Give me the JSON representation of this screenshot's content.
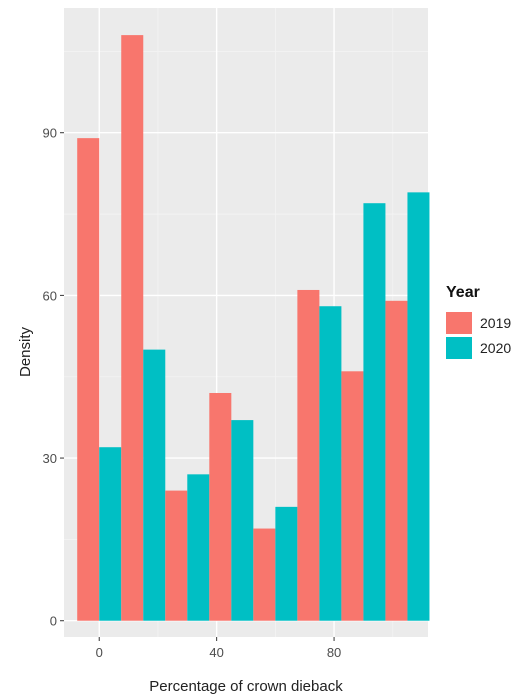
{
  "chart_data": {
    "type": "bar",
    "xlabel": "Percentage of crown dieback",
    "ylabel": "Density",
    "x_ticks": [
      0,
      40,
      80
    ],
    "y_ticks": [
      0,
      30,
      60,
      90
    ],
    "xlim": [
      -12,
      112
    ],
    "ylim": [
      -3,
      113
    ],
    "bin_width": 15,
    "bin_centers": [
      0,
      15,
      30,
      45,
      60,
      75,
      90,
      105
    ],
    "series": [
      {
        "name": "2019",
        "color": "#F8766D",
        "values": [
          89,
          108,
          24,
          42,
          17,
          61,
          46,
          59
        ]
      },
      {
        "name": "2020",
        "color": "#00BFC4",
        "values": [
          32,
          50,
          27,
          37,
          21,
          58,
          77,
          79
        ]
      }
    ],
    "grid": true,
    "legend": {
      "title": "Year",
      "position": "right"
    }
  }
}
